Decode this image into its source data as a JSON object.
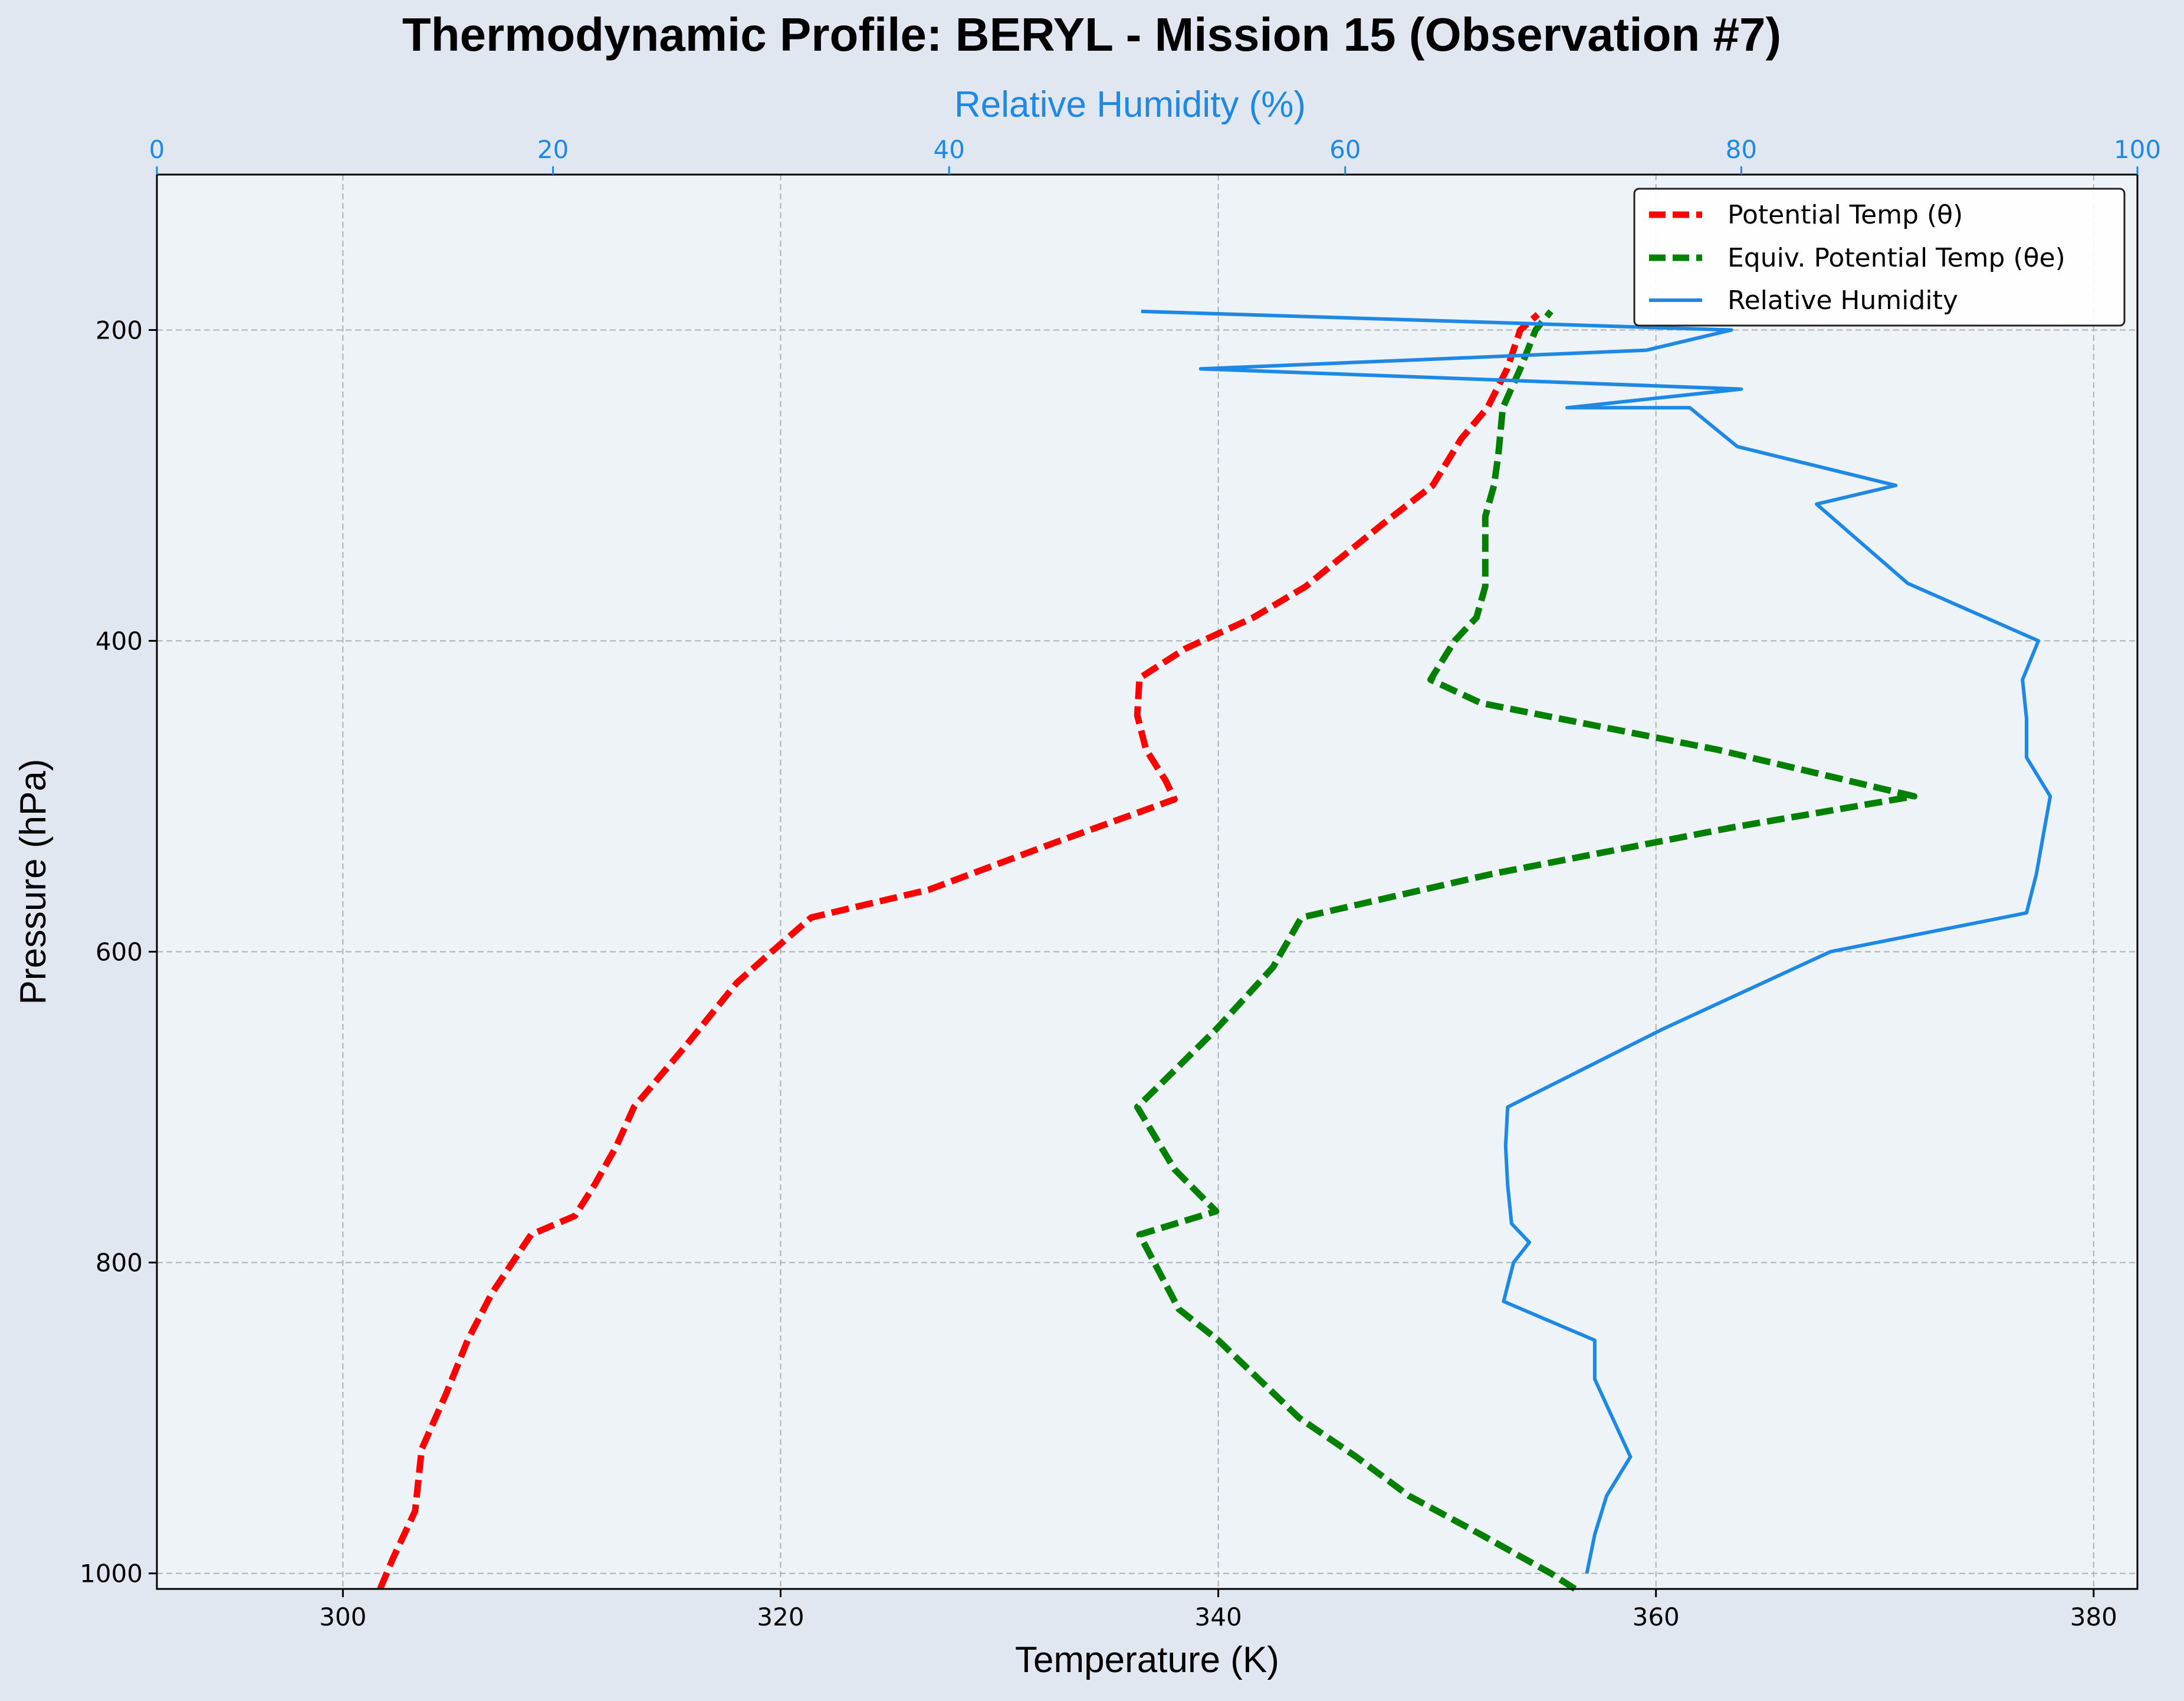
{
  "chart_data": {
    "type": "line",
    "title": "Thermodynamic Profile:  BERYL - Mission 15 (Observation #7)",
    "xlabel": "Temperature (K)",
    "ylabel": "Pressure (hPa)",
    "x2label": "Relative Humidity (%)",
    "xlim": [
      291.5,
      382.0
    ],
    "x2lim": [
      0,
      100
    ],
    "ylim": [
      1010,
      100
    ],
    "y_inverted": true,
    "grid": true,
    "legend_position": "top-right",
    "x_ticks": [
      "300",
      "320",
      "340",
      "360",
      "380"
    ],
    "x2_ticks": [
      "0",
      "20",
      "40",
      "60",
      "80",
      "100"
    ],
    "y_ticks": [
      "200",
      "400",
      "600",
      "800",
      "1000"
    ],
    "pressure": [
      1000,
      975,
      950,
      925,
      900,
      875,
      850,
      825,
      800,
      787,
      775,
      750,
      725,
      700,
      675,
      650,
      625,
      600,
      575,
      550,
      525,
      500,
      475,
      450,
      425,
      400,
      375,
      350,
      325,
      300,
      275,
      250,
      225,
      200,
      188
    ],
    "series": [
      {
        "name": "Potential Temp (θ)",
        "axis": "temperature",
        "color": "#ff0000",
        "style": "dashed",
        "pressure": [
          1010,
          990,
          960,
          920,
          885,
          850,
          820,
          782,
          770,
          750,
          725,
          700,
          660,
          620,
          600,
          578,
          560,
          530,
          502,
          490,
          470,
          448,
          424,
          405,
          385,
          365,
          350,
          325,
          300,
          270,
          250,
          225,
          200,
          190
        ],
        "values": [
          301.7,
          302.3,
          303.3,
          303.6,
          304.7,
          305.7,
          306.8,
          308.6,
          310.6,
          311.5,
          312.5,
          313.3,
          315.7,
          318.0,
          319.6,
          321.4,
          326.8,
          332.5,
          338.0,
          337.6,
          336.7,
          336.3,
          336.4,
          338.5,
          341.6,
          344.0,
          345.3,
          347.5,
          349.8,
          351.1,
          352.3,
          353.2,
          353.8,
          354.6
        ]
      },
      {
        "name": "Equiv. Potential Temp (θe)",
        "axis": "temperature",
        "color": "#008000",
        "style": "dashed",
        "pressure": [
          1010,
          1000,
          975,
          950,
          925,
          900,
          850,
          830,
          782,
          767,
          740,
          700,
          650,
          610,
          578,
          550,
          520,
          500,
          470,
          440,
          425,
          400,
          385,
          365,
          340,
          320,
          300,
          280,
          250,
          225,
          200,
          188
        ],
        "values": [
          356.3,
          355.2,
          352.0,
          348.7,
          346.3,
          343.7,
          340.0,
          338.2,
          336.4,
          339.9,
          338.0,
          336.3,
          339.9,
          342.5,
          343.8,
          352.5,
          363.5,
          371.8,
          362.8,
          352.0,
          349.7,
          350.8,
          351.8,
          352.2,
          352.2,
          352.2,
          352.6,
          352.8,
          353.0,
          353.8,
          354.5,
          355.2
        ]
      },
      {
        "name": "Relative Humidity",
        "axis": "humidity",
        "color": "#1e88e5",
        "style": "solid",
        "pressure": [
          1000,
          975,
          950,
          925,
          900,
          875,
          850,
          825,
          800,
          787,
          775,
          750,
          725,
          700,
          650,
          600,
          575,
          550,
          500,
          475,
          450,
          425,
          400,
          363,
          312,
          300,
          275,
          250,
          250,
          238,
          225,
          213,
          200,
          188
        ],
        "values": [
          72.2,
          72.6,
          73.2,
          74.4,
          73.5,
          72.6,
          72.6,
          68.0,
          68.5,
          69.3,
          68.4,
          68.2,
          68.1,
          68.2,
          76.0,
          84.5,
          94.4,
          94.9,
          95.6,
          94.4,
          94.4,
          94.2,
          95.0,
          88.4,
          83.8,
          87.8,
          79.8,
          77.4,
          71.2,
          80.0,
          52.7,
          75.2,
          79.5,
          49.7
        ]
      }
    ]
  }
}
